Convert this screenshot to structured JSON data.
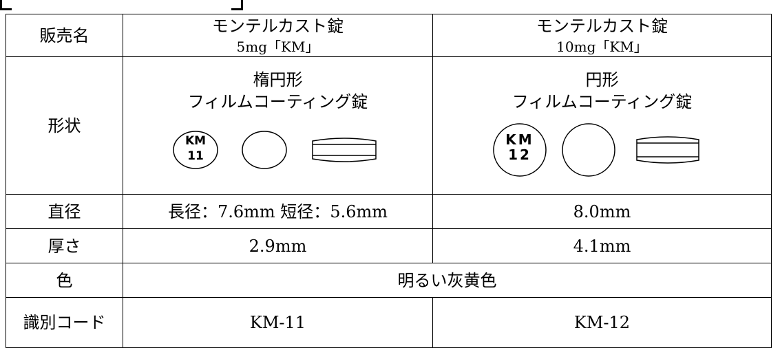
{
  "table": {
    "rows": [
      {
        "label": "販売名",
        "cells": [
          [
            "モンテルカスト錠",
            "5mg「KM」"
          ],
          [
            "モンテルカスト錠",
            "10mg「KM」"
          ]
        ]
      },
      {
        "label": "形状",
        "cells": [
          [
            "楕円形",
            "フィルムコーティング錠"
          ],
          [
            "円形",
            "フィルムコーティング錠"
          ]
        ],
        "imprints": [
          [
            "KM",
            "11"
          ],
          [
            "KM",
            "12"
          ]
        ]
      },
      {
        "label": "直径",
        "cells": [
          [
            "長径：7.6mm 短径：5.6mm"
          ],
          [
            "8.0mm"
          ]
        ]
      },
      {
        "label": "厚さ",
        "cells": [
          [
            "2.9mm"
          ],
          [
            "4.1mm"
          ]
        ]
      },
      {
        "label": "色",
        "cells": [
          [
            "明るい灰黄色"
          ]
        ]
      },
      {
        "label": "識別コード",
        "cells": [
          [
            "KM-11"
          ],
          [
            "KM-12"
          ]
        ]
      }
    ]
  }
}
